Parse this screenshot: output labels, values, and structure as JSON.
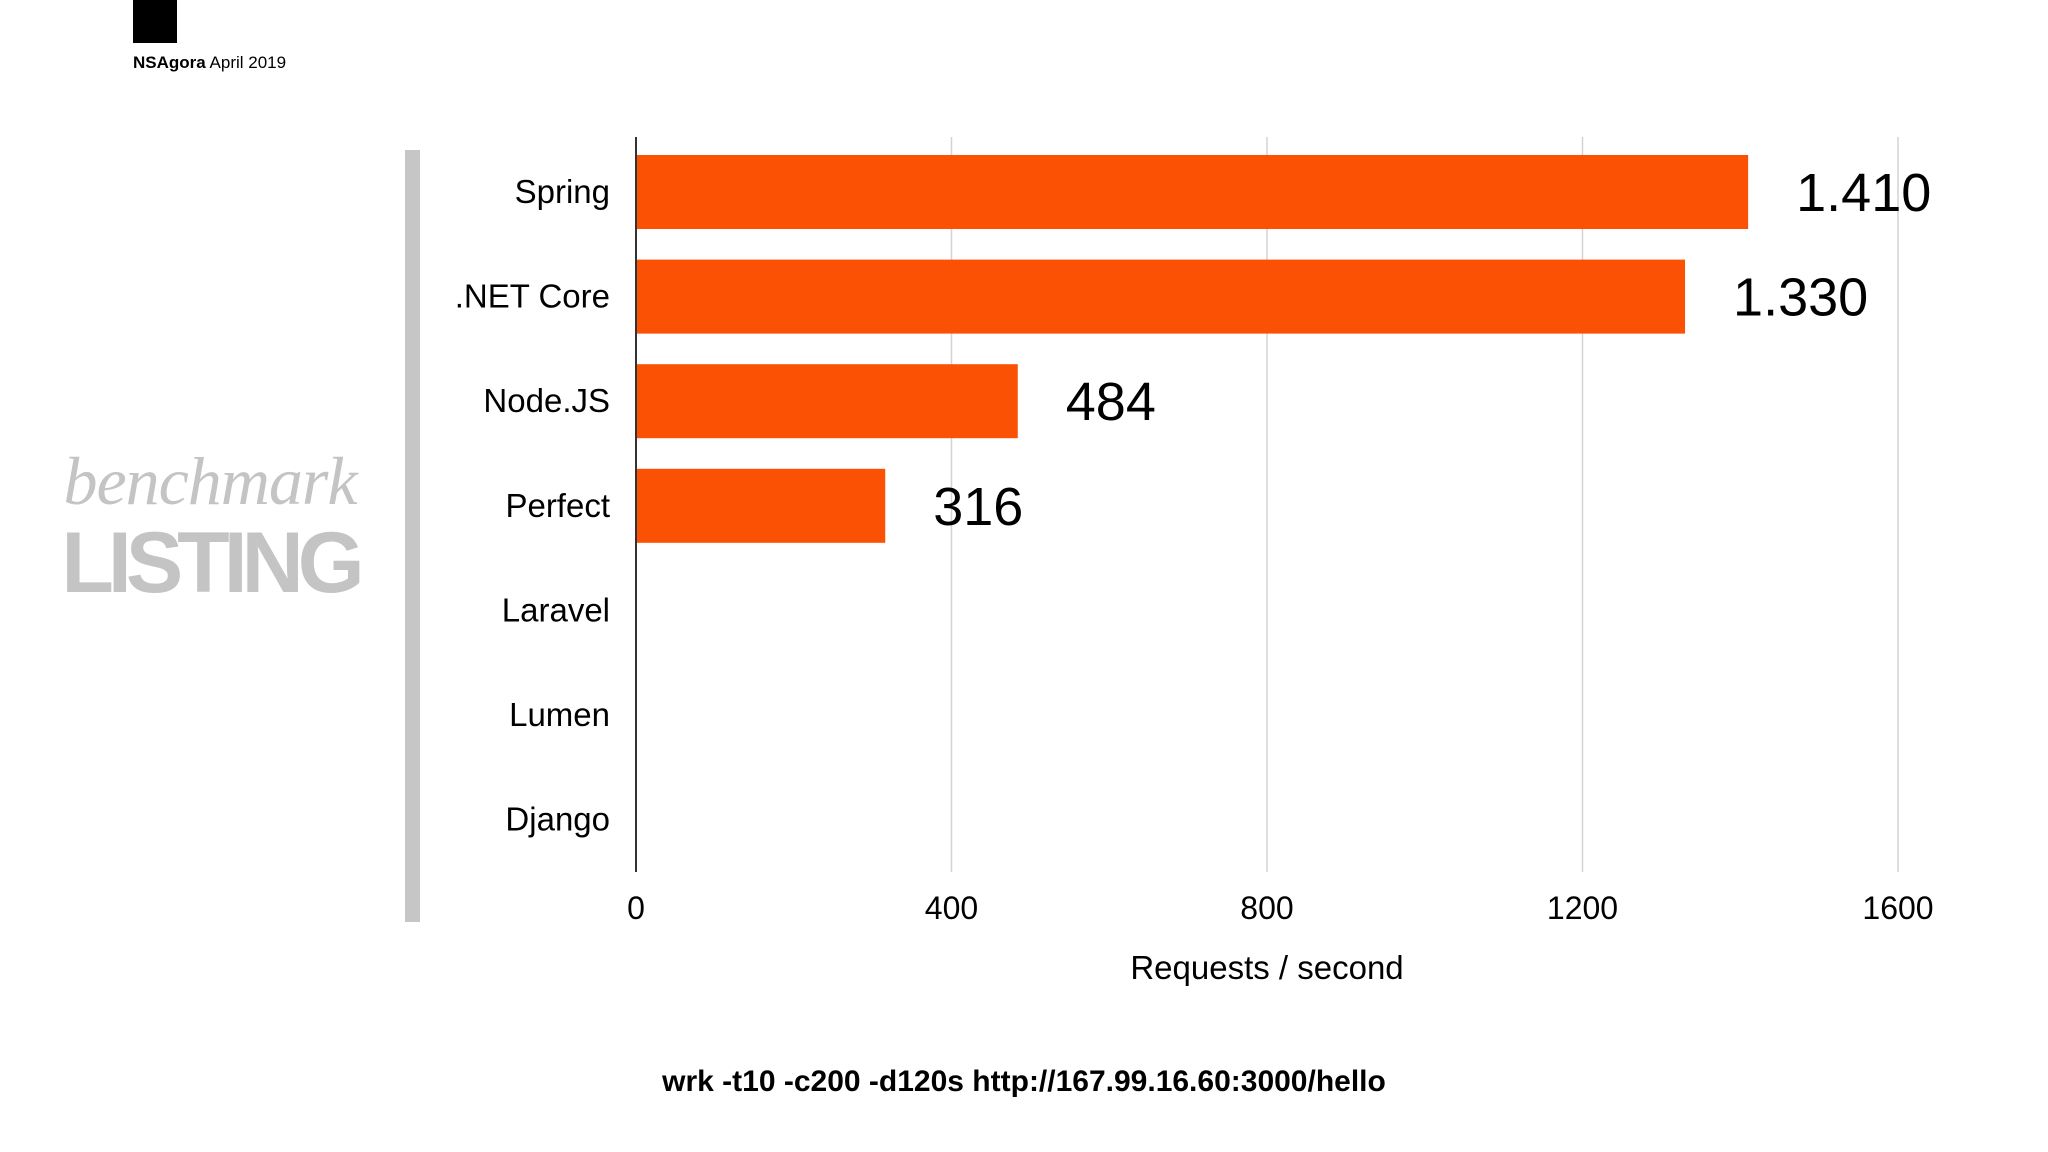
{
  "header": {
    "brand": "NSAgora",
    "date": "April 2019"
  },
  "side_title": {
    "small": "benchmark",
    "big": "LISTING"
  },
  "chart_data": {
    "type": "bar",
    "orientation": "horizontal",
    "categories": [
      "Spring",
      ".NET Core",
      "Node.JS",
      "Perfect",
      "Laravel",
      "Lumen",
      "Django"
    ],
    "values": [
      1410,
      1330,
      484,
      316,
      null,
      null,
      null
    ],
    "data_labels": [
      "1.410",
      "1.330",
      "484",
      "316",
      "",
      "",
      ""
    ],
    "xlabel": "Requests / second",
    "xlim": [
      0,
      1600
    ],
    "xticks": [
      0,
      400,
      800,
      1200,
      1600
    ],
    "grid": true,
    "bar_color": "#FA5105",
    "grid_color": "#D3D3D3"
  },
  "footer": {
    "command": "wrk -t10 -c200 -d120s http://167.99.16.60:3000/hello"
  }
}
